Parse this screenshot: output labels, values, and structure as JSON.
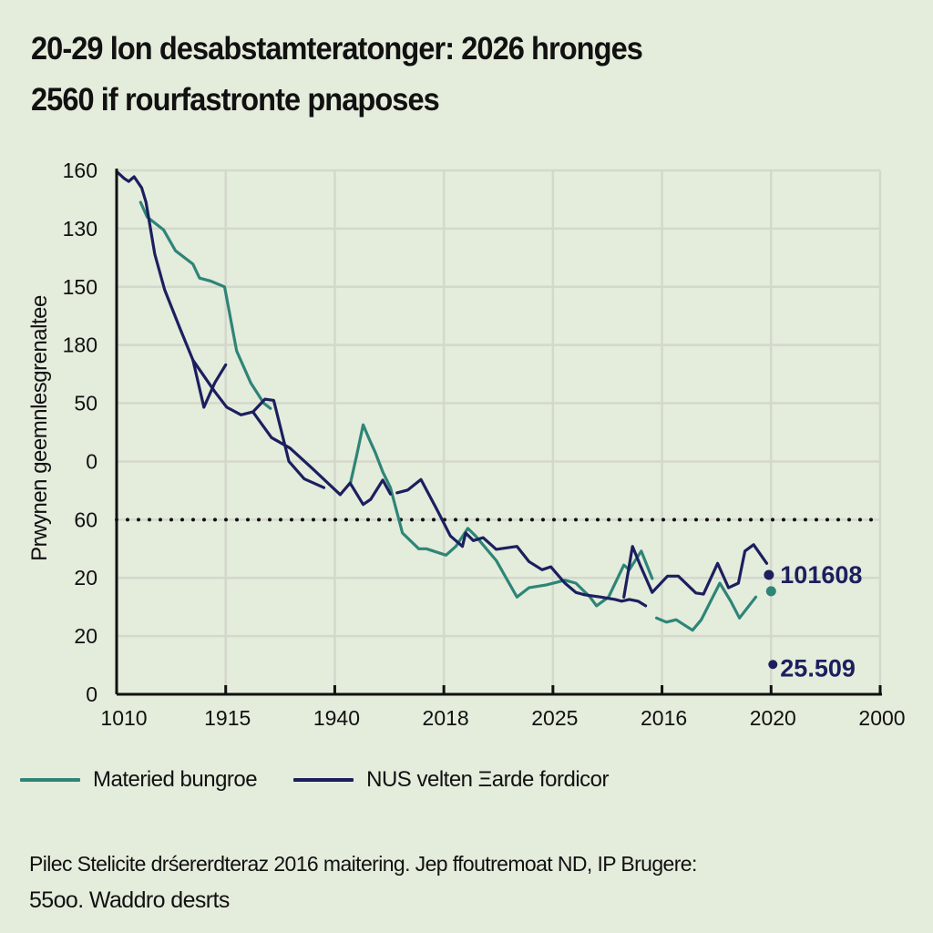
{
  "title": {
    "line1": "20-29 lon desabstamteratonger: 2026 hronges",
    "line2": "2560 if rourfastronte pnaposes"
  },
  "footnote": {
    "line1": "Pilec Stelicite drśererdteraz 2016 maitering. Jep ffoutremoat ND, IP Brugere:",
    "line2": "55oo. Waddro desrts"
  },
  "colors": {
    "background": "#e4ecdc",
    "grid": "#d3d8cc",
    "axis": "#111111",
    "series_teal": "#2e8577",
    "series_navy": "#1c1f5e"
  },
  "chart_data": {
    "type": "line",
    "title": "20-29 lon desabstamteratonger: 2026 hronges 2560 if rourfastronte pnaposes",
    "xlabel": "",
    "ylabel": "Prwynen geemnlesgrenaltee",
    "x_tick_labels": [
      "1010",
      "1915",
      "1940",
      "2018",
      "2025",
      "2016",
      "2020",
      "2000"
    ],
    "y_tick_labels_bottom_to_top": [
      "0",
      "20",
      "20",
      "60",
      "0",
      "50",
      "180",
      "150",
      "130",
      "160"
    ],
    "x_range_index": [
      0,
      7
    ],
    "y_range_index": [
      0,
      9
    ],
    "grid": true,
    "legend_placement": "bottom-left",
    "reference_line": {
      "style": "dotted",
      "y_index": 3.0,
      "label": "60"
    },
    "series": [
      {
        "name": "Materied bungroe",
        "color": "#2e8577",
        "segments": [
          [
            [
              0.22,
              8.45
            ],
            [
              0.28,
              8.2
            ],
            [
              0.43,
              7.98
            ],
            [
              0.54,
              7.62
            ],
            [
              0.7,
              7.39
            ],
            [
              0.76,
              7.15
            ],
            [
              0.86,
              7.1
            ],
            [
              0.99,
              7.0
            ],
            [
              1.1,
              5.9
            ],
            [
              1.23,
              5.35
            ],
            [
              1.35,
              5.0
            ],
            [
              1.41,
              4.91
            ]
          ],
          [
            [
              2.14,
              3.6
            ],
            [
              2.2,
              4.1
            ],
            [
              2.26,
              4.63
            ],
            [
              2.31,
              4.41
            ],
            [
              2.37,
              4.16
            ],
            [
              2.44,
              3.82
            ],
            [
              2.51,
              3.55
            ],
            [
              2.62,
              2.77
            ],
            [
              2.77,
              2.5
            ],
            [
              2.84,
              2.5
            ],
            [
              3.02,
              2.39
            ],
            [
              3.11,
              2.54
            ],
            [
              3.22,
              2.85
            ],
            [
              3.29,
              2.72
            ],
            [
              3.48,
              2.3
            ],
            [
              3.67,
              1.67
            ],
            [
              3.78,
              1.83
            ],
            [
              3.94,
              1.88
            ],
            [
              4.11,
              1.96
            ],
            [
              4.21,
              1.91
            ],
            [
              4.34,
              1.67
            ],
            [
              4.4,
              1.52
            ],
            [
              4.51,
              1.67
            ],
            [
              4.65,
              2.22
            ],
            [
              4.7,
              2.14
            ],
            [
              4.81,
              2.46
            ],
            [
              4.91,
              1.99
            ]
          ],
          [
            [
              4.95,
              1.31
            ],
            [
              5.04,
              1.24
            ],
            [
              5.13,
              1.28
            ],
            [
              5.28,
              1.1
            ],
            [
              5.36,
              1.28
            ],
            [
              5.53,
              1.91
            ],
            [
              5.63,
              1.6
            ],
            [
              5.71,
              1.31
            ],
            [
              5.86,
              1.67
            ]
          ]
        ],
        "end_marker": [
          6.0,
          1.77
        ]
      },
      {
        "name": "NUS velten Ξarde fordicor",
        "color": "#1c1f5e",
        "segments": [
          [
            [
              0.0,
              8.98
            ],
            [
              0.07,
              8.86
            ],
            [
              0.11,
              8.81
            ],
            [
              0.16,
              8.89
            ],
            [
              0.23,
              8.7
            ],
            [
              0.27,
              8.45
            ],
            [
              0.35,
              7.56
            ],
            [
              0.44,
              6.95
            ],
            [
              0.58,
              6.29
            ],
            [
              0.7,
              5.74
            ],
            [
              0.8,
              4.93
            ],
            [
              0.9,
              5.35
            ],
            [
              1.0,
              5.66
            ]
          ],
          [
            [
              0.7,
              5.74
            ],
            [
              0.9,
              5.2
            ],
            [
              1.01,
              4.93
            ],
            [
              1.14,
              4.8
            ],
            [
              1.25,
              4.85
            ],
            [
              1.42,
              4.41
            ],
            [
              1.59,
              4.23
            ],
            [
              1.8,
              3.87
            ],
            [
              2.05,
              3.43
            ],
            [
              2.14,
              3.63
            ],
            [
              2.26,
              3.26
            ],
            [
              2.33,
              3.35
            ],
            [
              2.44,
              3.68
            ],
            [
              2.51,
              3.44
            ]
          ],
          [
            [
              1.25,
              4.85
            ],
            [
              1.36,
              5.07
            ],
            [
              1.44,
              5.05
            ],
            [
              1.58,
              4.0
            ],
            [
              1.72,
              3.7
            ],
            [
              1.9,
              3.55
            ]
          ],
          [
            [
              2.57,
              3.46
            ],
            [
              2.67,
              3.51
            ],
            [
              2.79,
              3.69
            ],
            [
              2.94,
              3.16
            ],
            [
              3.06,
              2.72
            ],
            [
              3.17,
              2.54
            ],
            [
              3.2,
              2.77
            ],
            [
              3.27,
              2.64
            ],
            [
              3.36,
              2.69
            ],
            [
              3.48,
              2.49
            ],
            [
              3.67,
              2.54
            ],
            [
              3.78,
              2.28
            ],
            [
              3.9,
              2.14
            ],
            [
              3.98,
              2.19
            ],
            [
              4.11,
              1.91
            ],
            [
              4.21,
              1.75
            ],
            [
              4.29,
              1.71
            ],
            [
              4.44,
              1.67
            ],
            [
              4.57,
              1.63
            ],
            [
              4.63,
              1.6
            ],
            [
              4.7,
              1.63
            ],
            [
              4.78,
              1.6
            ],
            [
              4.85,
              1.52
            ]
          ],
          [
            [
              4.65,
              1.67
            ],
            [
              4.73,
              2.54
            ],
            [
              4.8,
              2.22
            ],
            [
              4.91,
              1.75
            ],
            [
              5.05,
              2.03
            ],
            [
              5.15,
              2.03
            ],
            [
              5.31,
              1.74
            ],
            [
              5.38,
              1.72
            ],
            [
              5.51,
              2.25
            ],
            [
              5.61,
              1.83
            ],
            [
              5.7,
              1.91
            ],
            [
              5.76,
              2.46
            ],
            [
              5.84,
              2.57
            ],
            [
              5.96,
              2.25
            ]
          ]
        ],
        "end_marker": [
          5.98,
          2.05
        ]
      }
    ],
    "annotations": [
      {
        "text": "101608",
        "x_index": 6.0,
        "y_index": 2.05,
        "color": "#1c1f5e"
      },
      {
        "text": "25.509",
        "x_index": 6.0,
        "y_index": 0.45,
        "color": "#1c1f5e"
      }
    ]
  }
}
